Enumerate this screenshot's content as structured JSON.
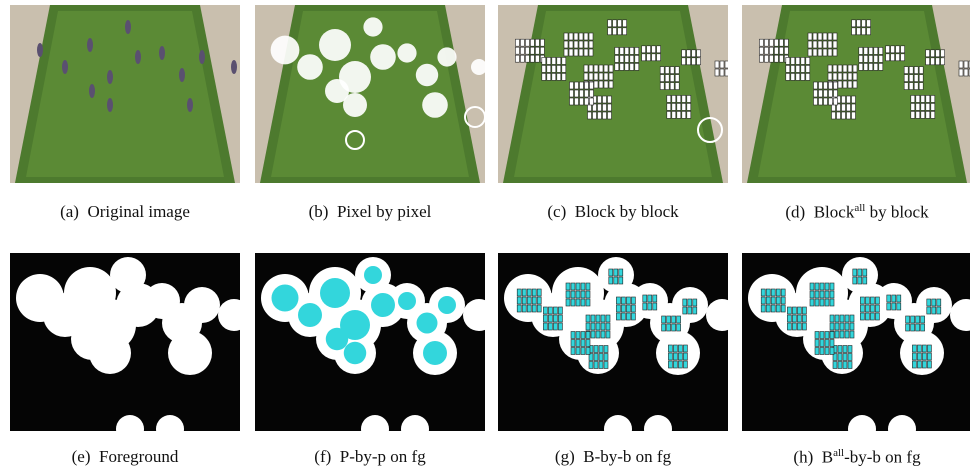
{
  "panels": [
    {
      "label": "(a)",
      "text": "Original image"
    },
    {
      "label": "(b)",
      "text": "Pixel by pixel"
    },
    {
      "label": "(c)",
      "text": "Block by block"
    },
    {
      "label": "(d)",
      "text": "Block",
      "sup": "all",
      "after": " by block"
    },
    {
      "label": "(e)",
      "text": "Foreground"
    },
    {
      "label": "(f)",
      "text": "P-by-p on fg"
    },
    {
      "label": "(g)",
      "text": "B-by-b on fg"
    },
    {
      "label": "(h)",
      "text": "B",
      "sup": "all",
      "after": "-by-b on fg"
    }
  ]
}
